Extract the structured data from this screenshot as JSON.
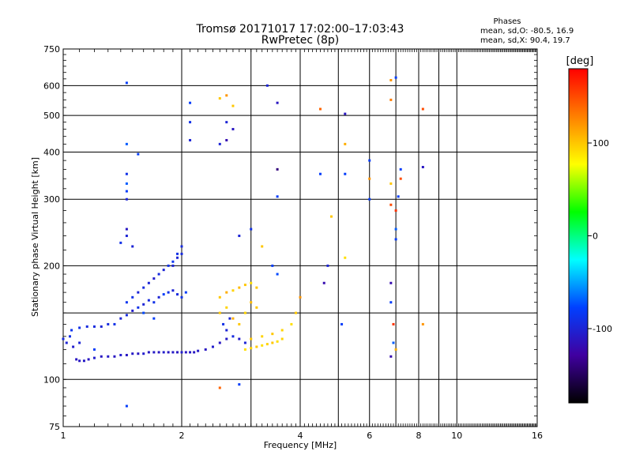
{
  "chart_data": {
    "type": "scatter",
    "title": "Tromsø 20171017 17:02:00–17:03:43",
    "subtitle": "RwPretec (8p)",
    "xlabel": "Frequency [MHz]",
    "ylabel": "Stationary phase Virtual Height [km]",
    "x_scale": "log",
    "y_scale": "log",
    "xlim": [
      1,
      16
    ],
    "ylim": [
      75,
      750
    ],
    "x_ticks": [
      1,
      2,
      4,
      6,
      8,
      10,
      16
    ],
    "y_ticks": [
      75,
      100,
      200,
      300,
      400,
      500,
      600,
      750
    ],
    "grid": true,
    "stats": {
      "heading": "Phases",
      "line1": "mean, sd,O: -80.5, 16.9",
      "line2": "mean, sd,X:  90.4, 19.7"
    },
    "colorbar": {
      "label": "[deg]",
      "min": -180,
      "max": 180,
      "ticks": [
        100,
        0,
        -100
      ],
      "colors": [
        "#ff0000",
        "#ff8000",
        "#ffff00",
        "#00ff00",
        "#00ffff",
        "#0040ff",
        "#4000a0",
        "#000000"
      ]
    },
    "series": [
      {
        "points": [
          [
            1.0,
            128,
            -95
          ],
          [
            1.02,
            125,
            -100
          ],
          [
            1.04,
            130,
            -90
          ],
          [
            1.06,
            122,
            -105
          ],
          [
            1.08,
            113,
            -110
          ],
          [
            1.1,
            112,
            -110
          ],
          [
            1.13,
            112,
            -108
          ],
          [
            1.16,
            113,
            -110
          ],
          [
            1.2,
            114,
            -105
          ],
          [
            1.25,
            115,
            -110
          ],
          [
            1.3,
            115,
            -108
          ],
          [
            1.35,
            115,
            -110
          ],
          [
            1.4,
            116,
            -105
          ],
          [
            1.45,
            116,
            -110
          ],
          [
            1.5,
            117,
            -108
          ],
          [
            1.55,
            117,
            -110
          ],
          [
            1.6,
            117,
            -105
          ],
          [
            1.65,
            118,
            -110
          ],
          [
            1.7,
            118,
            -108
          ],
          [
            1.75,
            118,
            -110
          ],
          [
            1.8,
            118,
            -105
          ],
          [
            1.85,
            118,
            -110
          ],
          [
            1.9,
            118,
            -108
          ],
          [
            1.95,
            118,
            -110
          ],
          [
            2.0,
            118,
            -105
          ],
          [
            2.05,
            118,
            -110
          ],
          [
            2.1,
            118,
            -108
          ],
          [
            2.15,
            118,
            -110
          ],
          [
            2.2,
            119,
            -108
          ],
          [
            2.3,
            120,
            -110
          ],
          [
            2.4,
            122,
            -105
          ],
          [
            2.5,
            125,
            -110
          ],
          [
            2.6,
            128,
            -108
          ]
        ]
      },
      {
        "points": [
          [
            1.05,
            135,
            -85
          ],
          [
            1.1,
            137,
            -90
          ],
          [
            1.15,
            138,
            -95
          ],
          [
            1.2,
            138,
            -95
          ],
          [
            1.25,
            138,
            -100
          ],
          [
            1.3,
            140,
            -95
          ],
          [
            1.35,
            140,
            -90
          ],
          [
            1.4,
            145,
            -100
          ],
          [
            1.45,
            148,
            -95
          ],
          [
            1.5,
            152,
            -105
          ],
          [
            1.55,
            155,
            -90
          ],
          [
            1.6,
            158,
            -100
          ],
          [
            1.65,
            162,
            -95
          ],
          [
            1.7,
            160,
            -90
          ],
          [
            1.75,
            165,
            -100
          ],
          [
            1.8,
            168,
            -80
          ],
          [
            1.85,
            170,
            -90
          ],
          [
            1.9,
            172,
            -100
          ],
          [
            1.95,
            168,
            -95
          ],
          [
            2.0,
            165,
            -90
          ],
          [
            2.05,
            170,
            -80
          ],
          [
            1.5,
            165,
            -90
          ],
          [
            1.55,
            170,
            -100
          ],
          [
            1.6,
            175,
            -95
          ],
          [
            1.65,
            180,
            -100
          ],
          [
            1.7,
            185,
            -105
          ],
          [
            1.75,
            190,
            -95
          ],
          [
            1.8,
            195,
            -100
          ],
          [
            1.85,
            200,
            -90
          ],
          [
            1.9,
            205,
            -85
          ],
          [
            1.95,
            210,
            -100
          ],
          [
            2.0,
            215,
            -95
          ],
          [
            1.45,
            160,
            -85
          ],
          [
            1.6,
            150,
            -75
          ],
          [
            1.7,
            145,
            -80
          ]
        ]
      },
      {
        "points": [
          [
            2.5,
            165,
            100
          ],
          [
            2.6,
            170,
            110
          ],
          [
            2.7,
            172,
            95
          ],
          [
            2.8,
            175,
            105
          ],
          [
            2.9,
            178,
            100
          ],
          [
            3.0,
            180,
            90
          ],
          [
            3.1,
            175,
            100
          ],
          [
            2.5,
            150,
            100
          ],
          [
            2.6,
            155,
            95
          ],
          [
            2.7,
            145,
            110
          ],
          [
            2.8,
            140,
            100
          ],
          [
            2.9,
            150,
            95
          ],
          [
            3.0,
            160,
            105
          ],
          [
            3.1,
            155,
            100
          ],
          [
            2.6,
            135,
            -100
          ],
          [
            2.7,
            130,
            -95
          ],
          [
            2.8,
            128,
            -105
          ],
          [
            2.9,
            125,
            -100
          ],
          [
            2.55,
            140,
            -90
          ],
          [
            2.65,
            145,
            -100
          ],
          [
            2.9,
            120,
            90
          ],
          [
            3.0,
            121,
            95
          ],
          [
            3.1,
            122,
            100
          ],
          [
            3.2,
            123,
            90
          ],
          [
            3.3,
            124,
            95
          ],
          [
            3.4,
            125,
            100
          ],
          [
            3.5,
            126,
            90
          ],
          [
            3.6,
            128,
            95
          ],
          [
            3.0,
            128,
            100
          ],
          [
            3.2,
            130,
            95
          ],
          [
            3.4,
            132,
            100
          ],
          [
            3.6,
            135,
            95
          ],
          [
            3.8,
            140,
            90
          ],
          [
            3.9,
            150,
            100
          ],
          [
            4.0,
            165,
            120
          ]
        ]
      },
      {
        "points": [
          [
            1.45,
            610,
            -80
          ],
          [
            1.45,
            420,
            -70
          ],
          [
            1.55,
            395,
            -80
          ],
          [
            1.45,
            350,
            -90
          ],
          [
            1.45,
            330,
            -70
          ],
          [
            1.45,
            315,
            -80
          ],
          [
            1.45,
            300,
            -100
          ],
          [
            1.45,
            250,
            -110
          ],
          [
            1.45,
            240,
            -100
          ],
          [
            1.4,
            230,
            -90
          ],
          [
            1.5,
            225,
            -100
          ],
          [
            2.1,
            540,
            -80
          ],
          [
            2.1,
            480,
            -90
          ],
          [
            2.1,
            430,
            -100
          ],
          [
            2.5,
            555,
            100
          ],
          [
            2.6,
            565,
            120
          ],
          [
            2.7,
            530,
            100
          ],
          [
            2.6,
            480,
            -100
          ],
          [
            2.7,
            460,
            -110
          ],
          [
            2.5,
            420,
            -100
          ],
          [
            2.6,
            430,
            -120
          ],
          [
            3.3,
            600,
            -100
          ],
          [
            3.5,
            540,
            -110
          ],
          [
            3.5,
            360,
            -140
          ],
          [
            3.5,
            305,
            -80
          ],
          [
            2.8,
            240,
            -100
          ],
          [
            3.0,
            250,
            -90
          ],
          [
            3.2,
            225,
            100
          ],
          [
            4.5,
            520,
            140
          ],
          [
            4.5,
            350,
            -80
          ],
          [
            4.8,
            270,
            100
          ],
          [
            5.2,
            505,
            -110
          ],
          [
            5.2,
            420,
            110
          ],
          [
            5.2,
            350,
            -80
          ],
          [
            5.2,
            210,
            90
          ],
          [
            6.0,
            380,
            -80
          ],
          [
            6.0,
            340,
            120
          ],
          [
            6.0,
            300,
            -80
          ],
          [
            6.8,
            620,
            120
          ],
          [
            6.8,
            550,
            130
          ],
          [
            7.0,
            630,
            -80
          ],
          [
            6.8,
            330,
            100
          ],
          [
            7.2,
            360,
            -80
          ],
          [
            7.2,
            340,
            150
          ],
          [
            7.1,
            305,
            -80
          ],
          [
            6.8,
            290,
            150
          ],
          [
            7.0,
            280,
            160
          ],
          [
            7.0,
            250,
            -70
          ],
          [
            7.0,
            235,
            -80
          ],
          [
            8.2,
            520,
            150
          ],
          [
            8.2,
            365,
            -110
          ],
          [
            6.8,
            180,
            -120
          ],
          [
            6.8,
            160,
            -80
          ],
          [
            6.9,
            140,
            160
          ],
          [
            6.9,
            125,
            -70
          ],
          [
            6.8,
            115,
            -120
          ],
          [
            7.0,
            120,
            110
          ],
          [
            8.2,
            140,
            120
          ],
          [
            4.7,
            200,
            -100
          ],
          [
            4.6,
            180,
            -120
          ],
          [
            5.1,
            140,
            -80
          ],
          [
            2.5,
            95,
            140
          ],
          [
            2.8,
            97,
            -80
          ],
          [
            1.45,
            85,
            -80
          ],
          [
            1.1,
            125,
            -100
          ],
          [
            1.2,
            120,
            -80
          ],
          [
            1.9,
            200,
            -100
          ],
          [
            1.95,
            215,
            -90
          ],
          [
            2.0,
            225,
            -95
          ],
          [
            3.4,
            200,
            -80
          ],
          [
            3.5,
            190,
            -75
          ]
        ]
      }
    ]
  }
}
